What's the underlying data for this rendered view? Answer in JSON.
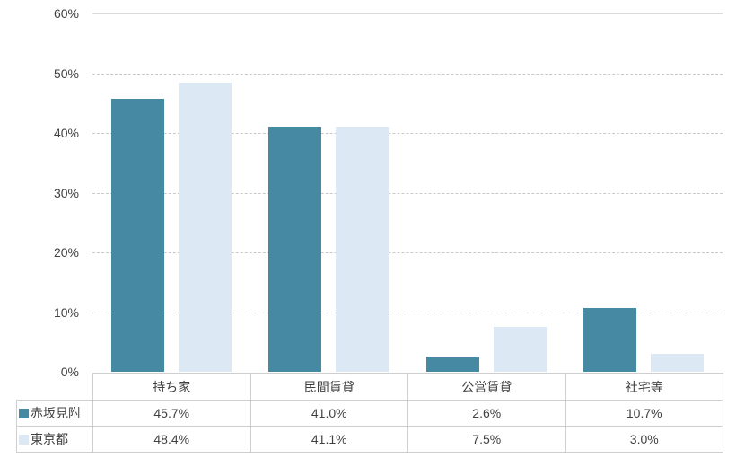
{
  "chart_data": {
    "type": "bar",
    "title": "",
    "categories": [
      "持ち家",
      "民間賃貸",
      "公営賃貸",
      "社宅等"
    ],
    "series": [
      {
        "name": "赤坂見附",
        "color": "#4589A3",
        "values": [
          45.7,
          41.0,
          2.6,
          10.7
        ],
        "labels": [
          "45.7%",
          "41.0%",
          "2.6%",
          "10.7%"
        ]
      },
      {
        "name": "東京都",
        "color": "#DCE8F4",
        "values": [
          48.4,
          41.1,
          7.5,
          3.0
        ],
        "labels": [
          "48.4%",
          "41.1%",
          "7.5%",
          "3.0%"
        ]
      }
    ],
    "ylim": [
      0,
      60
    ],
    "ytick_step": 10,
    "yticks": [
      "0%",
      "10%",
      "20%",
      "30%",
      "40%",
      "50%",
      "60%"
    ],
    "grid": true,
    "legend_position": "table-left",
    "colors": {
      "gridline": "#C9C9C9",
      "top_line": "#D9D9D9",
      "table_border": "#CFCFCF",
      "text": "#404040",
      "background": "#FFFFFF"
    }
  }
}
